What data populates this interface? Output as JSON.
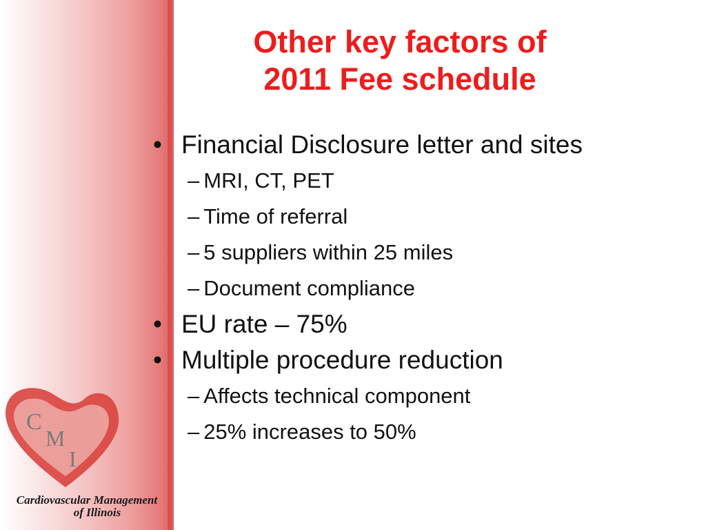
{
  "slide": {
    "title_line1": "Other key factors of",
    "title_line2": "2011 Fee schedule",
    "bullet_symbol": "•",
    "dash_symbol": "–",
    "items": [
      {
        "level": 1,
        "text": "Financial Disclosure letter and sites"
      },
      {
        "level": 2,
        "text": "MRI, CT, PET"
      },
      {
        "level": 2,
        "text": "Time of referral"
      },
      {
        "level": 2,
        "text": "5 suppliers within 25 miles"
      },
      {
        "level": 2,
        "text": "Document compliance"
      },
      {
        "level": 1,
        "text": "EU rate – 75%"
      },
      {
        "level": 1,
        "text": "Multiple procedure reduction"
      },
      {
        "level": 2,
        "text": "Affects technical component"
      },
      {
        "level": 2,
        "text": "25% increases to 50%"
      }
    ]
  },
  "logo": {
    "letters": [
      "C",
      "M",
      "I"
    ],
    "caption_line1": "Cardiovascular Management",
    "caption_line2": "of Illinois",
    "heart_color": "#d9443f",
    "letter_color": "#7a7a7a"
  },
  "colors": {
    "title": "#ee1c1c",
    "text": "#111111",
    "sidebar_accent": "#d94a4a"
  }
}
